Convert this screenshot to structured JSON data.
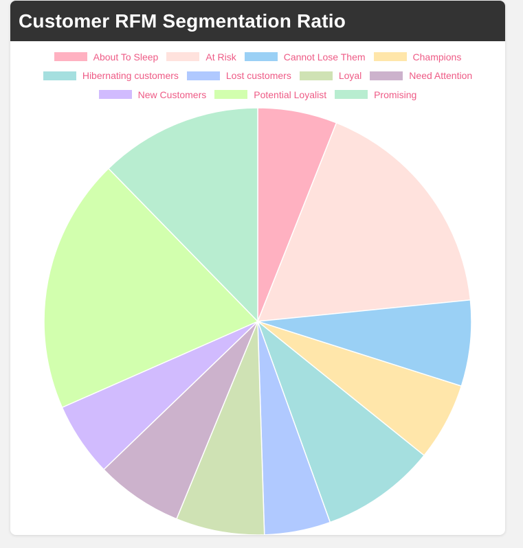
{
  "title": "Customer RFM Segmentation Ratio",
  "chart_data": {
    "type": "pie",
    "title": "Customer RFM Segmentation Ratio",
    "legend_position": "top",
    "start_angle_deg": 0,
    "direction": "clockwise",
    "slices": [
      {
        "label": "About To Sleep",
        "value": 6.0,
        "color": "#ffb1c1"
      },
      {
        "label": "At Risk",
        "value": 17.4,
        "color": "#ffe2dd"
      },
      {
        "label": "Cannot Lose Them",
        "value": 6.5,
        "color": "#9ad0f5"
      },
      {
        "label": "Champions",
        "value": 5.9,
        "color": "#ffe6aa"
      },
      {
        "label": "Hibernating customers",
        "value": 8.7,
        "color": "#a5dfdf"
      },
      {
        "label": "Lost customers",
        "value": 5.0,
        "color": "#b0c9ff"
      },
      {
        "label": "Loyal",
        "value": 6.7,
        "color": "#cfe2b4"
      },
      {
        "label": "Need Attention",
        "value": 6.6,
        "color": "#ccb2cc"
      },
      {
        "label": "New Customers",
        "value": 5.6,
        "color": "#d1bbfe"
      },
      {
        "label": "Potential Loyalist",
        "value": 19.3,
        "color": "#d2ffae"
      },
      {
        "label": "Promising",
        "value": 12.3,
        "color": "#b8edd0"
      }
    ],
    "legend_rows": [
      [
        "About To Sleep",
        "At Risk",
        "Cannot Lose Them",
        "Champions"
      ],
      [
        "Hibernating customers",
        "Lost customers",
        "Loyal",
        "Need Attention"
      ],
      [
        "New Customers",
        "Potential Loyalist",
        "Promising"
      ]
    ]
  }
}
